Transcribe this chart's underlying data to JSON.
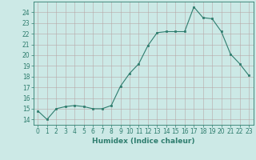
{
  "x": [
    0,
    1,
    2,
    3,
    4,
    5,
    6,
    7,
    8,
    9,
    10,
    11,
    12,
    13,
    14,
    15,
    16,
    17,
    18,
    19,
    20,
    21,
    22,
    23
  ],
  "y": [
    14.8,
    14.0,
    15.0,
    15.2,
    15.3,
    15.2,
    15.0,
    15.0,
    15.3,
    17.1,
    18.3,
    19.2,
    20.9,
    22.1,
    22.2,
    22.2,
    22.2,
    24.5,
    23.5,
    23.4,
    22.2,
    20.1,
    19.2,
    18.1
  ],
  "line_color": "#2e7d6e",
  "marker_color": "#2e7d6e",
  "bg_color": "#cce9e6",
  "grid_color": "#b8a8a8",
  "xlabel": "Humidex (Indice chaleur)",
  "ylim": [
    13.5,
    25.0
  ],
  "xlim": [
    -0.5,
    23.5
  ],
  "yticks": [
    14,
    15,
    16,
    17,
    18,
    19,
    20,
    21,
    22,
    23,
    24
  ],
  "xticks": [
    0,
    1,
    2,
    3,
    4,
    5,
    6,
    7,
    8,
    9,
    10,
    11,
    12,
    13,
    14,
    15,
    16,
    17,
    18,
    19,
    20,
    21,
    22,
    23
  ],
  "xlabel_fontsize": 6.5,
  "tick_fontsize": 5.5
}
